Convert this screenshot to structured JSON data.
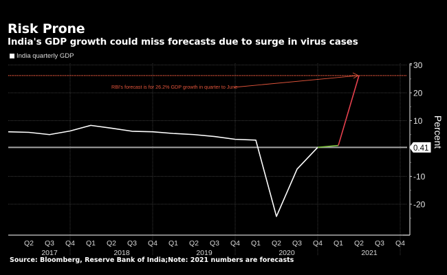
{
  "header": {
    "title": "Risk Prone",
    "subtitle": "India's GDP growth could miss forecasts due to surge in virus cases"
  },
  "legend": {
    "items": [
      {
        "label": "India quarterly GDP",
        "color": "#ffffff"
      }
    ]
  },
  "footer": {
    "source": "Source: Bloomberg, Reserve Bank of India;Note: 2021 numbers are forecasts"
  },
  "chart_data": {
    "type": "line",
    "title": "Risk Prone",
    "subtitle": "India's GDP growth could miss forecasts due to surge in virus cases",
    "xlabel": "",
    "ylabel": "Percent",
    "ylim": [
      -30,
      30
    ],
    "yticks": [
      30,
      20,
      10,
      -10,
      -20
    ],
    "ytick_labels": [
      "30",
      "20",
      "10",
      "-10",
      "-20"
    ],
    "grid": true,
    "legend_position": "top-left",
    "x": [
      "Q1 2017",
      "Q2 2017",
      "Q3 2017",
      "Q4 2017",
      "Q1 2018",
      "Q2 2018",
      "Q3 2018",
      "Q4 2018",
      "Q1 2019",
      "Q2 2019",
      "Q3 2019",
      "Q4 2019",
      "Q1 2020",
      "Q2 2020",
      "Q3 2020",
      "Q4 2020",
      "Q1 2021",
      "Q2 2021",
      "Q3 2021",
      "Q4 2021"
    ],
    "xtick_labels": [
      "",
      "Q2",
      "Q3",
      "Q4",
      "Q1",
      "Q2",
      "Q3",
      "Q4",
      "Q1",
      "Q2",
      "Q3",
      "Q4",
      "Q1",
      "Q2",
      "Q3",
      "Q4",
      "Q1",
      "Q2",
      "Q3",
      "Q4"
    ],
    "year_labels": [
      {
        "label": "2017",
        "quarter_index": 2
      },
      {
        "label": "2018",
        "quarter_index": 5.5
      },
      {
        "label": "2019",
        "quarter_index": 9.5
      },
      {
        "label": "2020",
        "quarter_index": 13.5
      },
      {
        "label": "2021",
        "quarter_index": 17.5
      }
    ],
    "year_dividers": [
      3,
      7,
      11,
      15,
      19
    ],
    "series": [
      {
        "name": "India quarterly GDP",
        "color": "#ffffff",
        "values": [
          6.0,
          5.8,
          5.0,
          6.3,
          8.3,
          7.3,
          6.2,
          6.0,
          5.4,
          5.0,
          4.3,
          3.3,
          3.0,
          -24.4,
          -7.4,
          0.41,
          null,
          null,
          null,
          null
        ]
      },
      {
        "name": "Forecast Q4 2020 to Q1 2021",
        "color": "#7fc241",
        "values": [
          null,
          null,
          null,
          null,
          null,
          null,
          null,
          null,
          null,
          null,
          null,
          null,
          null,
          null,
          null,
          0.41,
          1.1,
          null,
          null,
          null
        ]
      },
      {
        "name": "Forecast Q1 2021 to Q2 2021",
        "color": "#e8424f",
        "values": [
          null,
          null,
          null,
          null,
          null,
          null,
          null,
          null,
          null,
          null,
          null,
          null,
          null,
          null,
          null,
          null,
          1.1,
          26.2,
          null,
          null
        ]
      }
    ],
    "reference_lines": [
      {
        "value": 26.2,
        "color": "#e2553b",
        "style": "dotted"
      },
      {
        "value": 0.41,
        "color": "#a6a6a6",
        "style": "solid",
        "label": "0.41"
      }
    ],
    "annotations": [
      {
        "text": "RBI's forecast is for 26.2% GDP growth in quarter to June",
        "color": "#e2553b",
        "arrow_to": "Q2 2021"
      }
    ]
  }
}
